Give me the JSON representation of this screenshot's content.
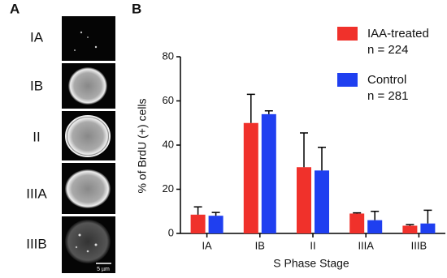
{
  "panel_a": {
    "label": "A",
    "rows": [
      "IA",
      "IB",
      "II",
      "IIIA",
      "IIIB"
    ],
    "scale_bar": "5 µm"
  },
  "chart_data": {
    "type": "bar",
    "panel_label": "B",
    "x_label": "S Phase Stage",
    "y_label": "% of BrdU (+) cells",
    "categories": [
      "IA",
      "IB",
      "II",
      "IIIA",
      "IIIB"
    ],
    "series": [
      {
        "name": "IAA-treated",
        "n": "n = 224",
        "color": "#f0312b",
        "values": [
          8.5,
          50,
          30,
          9,
          3.5
        ],
        "errors": [
          3.5,
          13,
          15.5,
          0.3,
          0.5
        ]
      },
      {
        "name": "Control",
        "n": "n = 281",
        "color": "#1f3ff0",
        "values": [
          8,
          54,
          28.5,
          6,
          4.5
        ],
        "errors": [
          1.5,
          1.5,
          10.5,
          4,
          6
        ]
      }
    ],
    "ylim": [
      0,
      80
    ],
    "yticks": [
      0,
      20,
      40,
      60,
      80
    ]
  }
}
